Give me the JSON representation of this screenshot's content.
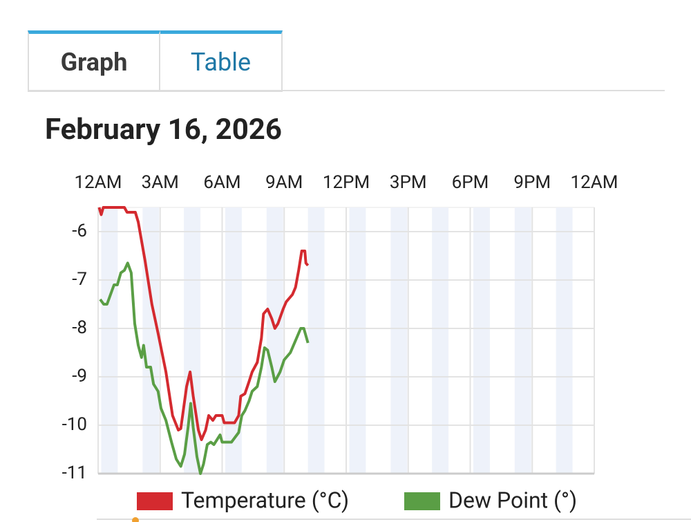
{
  "tabs": [
    "Graph",
    "Table"
  ],
  "chart_data": {
    "type": "line",
    "title": "February 16, 2026",
    "xlim": [
      0,
      24
    ],
    "xticks": [
      {
        "value": 0,
        "label": "12AM"
      },
      {
        "value": 3,
        "label": "3AM"
      },
      {
        "value": 6,
        "label": "6AM"
      },
      {
        "value": 9,
        "label": "9AM"
      },
      {
        "value": 12,
        "label": "12PM"
      },
      {
        "value": 15,
        "label": "3PM"
      },
      {
        "value": 18,
        "label": "6PM"
      },
      {
        "value": 21,
        "label": "9PM"
      },
      {
        "value": 24,
        "label": "12AM"
      }
    ],
    "ylim": [
      -11,
      -5.5
    ],
    "yticks": [
      -11,
      -10,
      -9,
      -8,
      -7,
      -6
    ],
    "grid": true,
    "series": [
      {
        "name": "Temperature (°C)",
        "color": "#d42a2f",
        "x": [
          0.05,
          0.15,
          0.25,
          1.27,
          1.4,
          1.8,
          1.94,
          2.27,
          2.6,
          2.9,
          3.28,
          3.6,
          3.88,
          4.0,
          4.28,
          4.45,
          4.6,
          4.85,
          5.0,
          5.2,
          5.35,
          5.55,
          5.7,
          6.0,
          6.1,
          6.6,
          6.8,
          6.9,
          7.1,
          7.3,
          7.45,
          7.7,
          7.9,
          8.0,
          8.2,
          8.4,
          8.55,
          8.7,
          8.95,
          9.1,
          9.4,
          9.55,
          9.7,
          9.85,
          10.0,
          10.05,
          10.15
        ],
        "values": [
          -5.5,
          -5.65,
          -5.5,
          -5.5,
          -5.6,
          -5.6,
          -5.8,
          -6.6,
          -7.5,
          -8.1,
          -8.9,
          -9.8,
          -10.1,
          -10.07,
          -9.2,
          -8.9,
          -9.4,
          -10.1,
          -10.3,
          -10.1,
          -9.8,
          -9.9,
          -9.8,
          -9.8,
          -9.95,
          -9.95,
          -9.8,
          -9.4,
          -9.35,
          -9.1,
          -8.9,
          -8.7,
          -8.2,
          -7.7,
          -7.6,
          -7.8,
          -8.0,
          -7.9,
          -7.6,
          -7.45,
          -7.3,
          -7.15,
          -6.8,
          -6.4,
          -6.4,
          -6.65,
          -6.7
        ]
      },
      {
        "name": "Dew Point (°)",
        "color": "#5a9e45",
        "x": [
          0.1,
          0.27,
          0.43,
          0.6,
          0.77,
          0.93,
          1.1,
          1.27,
          1.43,
          1.6,
          1.77,
          1.94,
          2.1,
          2.2,
          2.34,
          2.54,
          2.68,
          2.9,
          3.04,
          3.28,
          3.55,
          3.78,
          4.0,
          4.18,
          4.35,
          4.48,
          4.6,
          4.78,
          4.95,
          5.1,
          5.28,
          5.45,
          5.6,
          5.9,
          6.0,
          6.45,
          6.8,
          6.95,
          7.1,
          7.3,
          7.45,
          7.7,
          7.9,
          8.05,
          8.2,
          8.4,
          8.55,
          8.8,
          9.0,
          9.3,
          9.45,
          9.6,
          9.8,
          9.95,
          10.15
        ],
        "values": [
          -7.4,
          -7.5,
          -7.5,
          -7.3,
          -7.1,
          -7.1,
          -6.85,
          -6.8,
          -6.65,
          -6.85,
          -7.9,
          -8.35,
          -8.6,
          -8.35,
          -8.8,
          -8.8,
          -9.15,
          -9.3,
          -9.65,
          -9.9,
          -10.35,
          -10.7,
          -10.85,
          -10.6,
          -10.05,
          -9.55,
          -10.05,
          -10.65,
          -11.0,
          -10.8,
          -10.4,
          -10.35,
          -10.4,
          -10.2,
          -10.35,
          -10.35,
          -10.15,
          -9.8,
          -9.7,
          -9.5,
          -9.3,
          -9.2,
          -8.8,
          -8.4,
          -8.45,
          -8.8,
          -9.1,
          -8.9,
          -8.65,
          -8.5,
          -8.35,
          -8.2,
          -8.0,
          -8.0,
          -8.3
        ]
      }
    ]
  }
}
